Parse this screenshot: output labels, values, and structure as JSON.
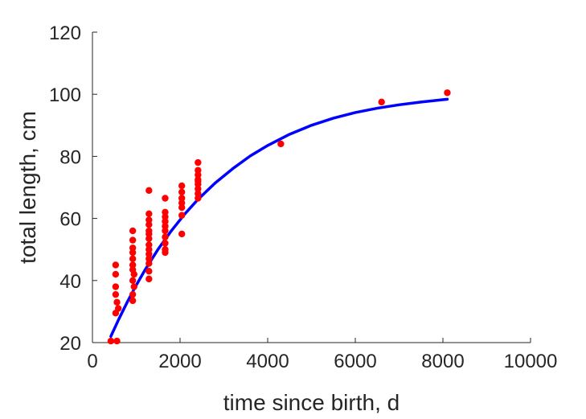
{
  "chart_data": {
    "type": "scatter",
    "xlabel": "time since birth, d",
    "ylabel": "total length, cm",
    "xlim": [
      0,
      10000
    ],
    "ylim": [
      20,
      120
    ],
    "xticks": [
      0,
      2000,
      4000,
      6000,
      8000,
      10000
    ],
    "yticks": [
      20,
      40,
      60,
      80,
      100,
      120
    ],
    "xtick_labels": [
      "0",
      "2000",
      "4000",
      "6000",
      "8000",
      "10000"
    ],
    "ytick_labels": [
      "20",
      "40",
      "60",
      "80",
      "100",
      "120"
    ],
    "grid": false,
    "box": false,
    "colors": {
      "points": "#ff0000",
      "curve": "#0000ff",
      "axes": "#262626"
    },
    "series": [
      {
        "kind": "scatter",
        "points": [
          [
            420,
            20.5
          ],
          [
            560,
            20.5
          ],
          [
            530,
            29.5
          ],
          [
            590,
            31
          ],
          [
            560,
            33
          ],
          [
            530,
            35.5
          ],
          [
            530,
            38
          ],
          [
            530,
            42
          ],
          [
            530,
            45
          ],
          [
            920,
            33.5
          ],
          [
            920,
            35.5
          ],
          [
            950,
            38
          ],
          [
            920,
            40
          ],
          [
            950,
            42
          ],
          [
            920,
            43.5
          ],
          [
            920,
            45
          ],
          [
            920,
            47
          ],
          [
            920,
            49
          ],
          [
            920,
            50.5
          ],
          [
            920,
            53
          ],
          [
            920,
            56
          ],
          [
            1290,
            40.5
          ],
          [
            1290,
            43
          ],
          [
            1290,
            45.5
          ],
          [
            1290,
            47
          ],
          [
            1290,
            48.5
          ],
          [
            1290,
            50
          ],
          [
            1290,
            51.5
          ],
          [
            1290,
            53.5
          ],
          [
            1290,
            55
          ],
          [
            1290,
            56
          ],
          [
            1290,
            58
          ],
          [
            1290,
            59.5
          ],
          [
            1290,
            61.5
          ],
          [
            1290,
            69
          ],
          [
            1660,
            49
          ],
          [
            1660,
            50
          ],
          [
            1660,
            52
          ],
          [
            1660,
            54
          ],
          [
            1660,
            56
          ],
          [
            1660,
            57.5
          ],
          [
            1660,
            59
          ],
          [
            1660,
            60.5
          ],
          [
            1660,
            62
          ],
          [
            1660,
            66.5
          ],
          [
            2040,
            55
          ],
          [
            2040,
            61
          ],
          [
            2040,
            63.5
          ],
          [
            2040,
            65
          ],
          [
            2040,
            66.5
          ],
          [
            2040,
            68.5
          ],
          [
            2040,
            70.5
          ],
          [
            2410,
            66.5
          ],
          [
            2410,
            68
          ],
          [
            2410,
            69.5
          ],
          [
            2410,
            71
          ],
          [
            2410,
            72.5
          ],
          [
            2410,
            74
          ],
          [
            2410,
            75.5
          ],
          [
            2410,
            78
          ],
          [
            2410,
            72
          ],
          [
            4300,
            84
          ],
          [
            6600,
            97.5
          ],
          [
            8100,
            100.5
          ]
        ]
      },
      {
        "kind": "line",
        "points": [
          [
            420,
            22
          ],
          [
            600,
            27.5
          ],
          [
            800,
            33.2
          ],
          [
            1000,
            38.5
          ],
          [
            1200,
            43.4
          ],
          [
            1500,
            50.1
          ],
          [
            1800,
            56.0
          ],
          [
            2100,
            61.3
          ],
          [
            2400,
            66.0
          ],
          [
            2800,
            71.4
          ],
          [
            3200,
            76.0
          ],
          [
            3600,
            80.1
          ],
          [
            4000,
            83.5
          ],
          [
            4500,
            87.1
          ],
          [
            5000,
            90.0
          ],
          [
            5500,
            92.3
          ],
          [
            6000,
            94.1
          ],
          [
            6500,
            95.5
          ],
          [
            7000,
            96.6
          ],
          [
            7500,
            97.5
          ],
          [
            8100,
            98.4
          ]
        ]
      }
    ]
  }
}
